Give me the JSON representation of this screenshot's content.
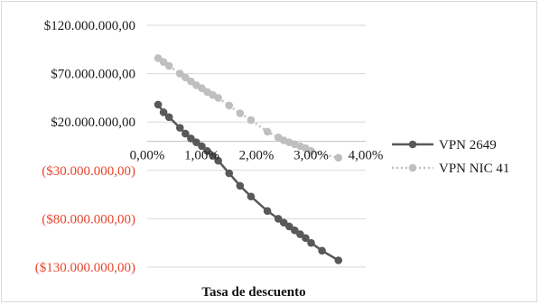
{
  "chart_data": {
    "type": "line",
    "title": "",
    "xlabel": "Tasa de descuento",
    "ylabel": "",
    "xlim": [
      0,
      4
    ],
    "ylim": [
      -130000000,
      120000000
    ],
    "x_ticks": [
      0,
      1,
      2,
      3,
      4
    ],
    "x_tick_labels": [
      "0,00%",
      "1,00%",
      "2,00%",
      "3,00%",
      "4,00%"
    ],
    "y_ticks": [
      120000000,
      70000000,
      20000000,
      -30000000,
      -80000000,
      -130000000
    ],
    "y_tick_labels": [
      "$120.000.000,00",
      "$70.000.000,00",
      "$20.000.000,00",
      "($30.000.000,00)",
      "($80.000.000,00)",
      "($130.000.000,00)"
    ],
    "negative_label_color": "#e8452c",
    "positive_label_color": "#1a1a1a",
    "grid": "horizontal",
    "legend_position": "right",
    "series": [
      {
        "name": "VPN 2649",
        "color": "#595959",
        "line_style": "solid",
        "x": [
          0.2,
          0.3,
          0.4,
          0.6,
          0.7,
          0.8,
          0.9,
          1.0,
          1.1,
          1.2,
          1.3,
          1.5,
          1.7,
          1.9,
          2.2,
          2.4,
          2.5,
          2.6,
          2.7,
          2.8,
          2.9,
          3.0,
          3.2,
          3.5
        ],
        "y": [
          38000000,
          30000000,
          25000000,
          14000000,
          8000000,
          3000000,
          -1000000,
          -5000000,
          -10000000,
          -15000000,
          -20000000,
          -33000000,
          -46000000,
          -57000000,
          -72000000,
          -80000000,
          -84000000,
          -88000000,
          -92000000,
          -96000000,
          -100000000,
          -105000000,
          -113000000,
          -123000000
        ]
      },
      {
        "name": "VPN NIC 41",
        "color": "#bfbfbf",
        "line_style": "dotted",
        "x": [
          0.2,
          0.3,
          0.4,
          0.6,
          0.7,
          0.8,
          0.9,
          1.0,
          1.1,
          1.2,
          1.3,
          1.5,
          1.7,
          1.9,
          2.2,
          2.4,
          2.5,
          2.6,
          2.7,
          2.8,
          2.9,
          3.0,
          3.5
        ],
        "y": [
          86000000,
          82000000,
          78000000,
          70000000,
          66000000,
          62000000,
          58000000,
          55000000,
          51000000,
          48000000,
          45000000,
          37000000,
          29000000,
          22000000,
          10000000,
          4000000,
          1000000,
          -1000000,
          -3000000,
          -5000000,
          -7000000,
          -10000000,
          -17000000
        ]
      }
    ]
  }
}
